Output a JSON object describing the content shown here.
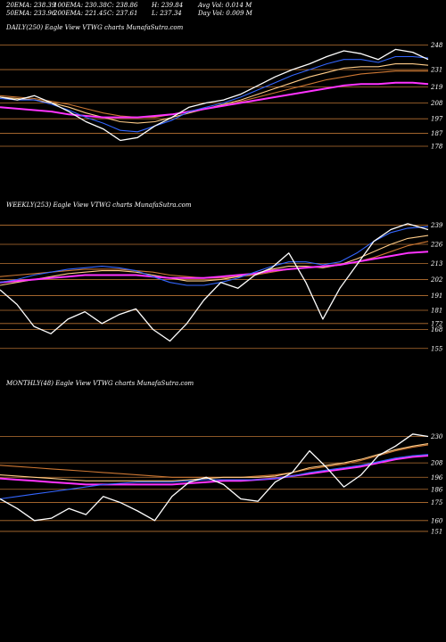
{
  "header": {
    "row1": [
      "20EMA: 238.39",
      "100EMA: 230.38",
      "C: 238.86",
      "H: 239.84",
      "Avg Vol: 0.014  M"
    ],
    "row2": [
      "50EMA: 233.96",
      "200EMA: 221.45",
      "C: 237.61",
      "L: 237.34",
      "Day Vol: 0.009 M"
    ]
  },
  "chart_data": [
    {
      "type": "line",
      "title": "DAILY(250) Eagle  View  VTWG charts MunafaSutra.com",
      "y_ticks": [
        248,
        231,
        219,
        208,
        197,
        187,
        178
      ],
      "ylim": [
        170,
        252
      ],
      "x": [
        0,
        10,
        20,
        30,
        40,
        50,
        60,
        70,
        80,
        90,
        100,
        110,
        120,
        130,
        140,
        150,
        160,
        170,
        180,
        190,
        200,
        210,
        220,
        230,
        240,
        249
      ],
      "series": [
        {
          "color": "#ffffff",
          "values": [
            212,
            210,
            213,
            208,
            202,
            195,
            190,
            182,
            184,
            192,
            198,
            205,
            208,
            210,
            214,
            220,
            226,
            231,
            235,
            240,
            244,
            242,
            238,
            245,
            243,
            238
          ]
        },
        {
          "color": "#3366ff",
          "values": [
            211,
            210,
            210,
            207,
            203,
            198,
            194,
            189,
            188,
            192,
            196,
            202,
            205,
            208,
            212,
            217,
            222,
            227,
            231,
            235,
            238,
            238,
            236,
            240,
            240,
            239
          ]
        },
        {
          "color": "#ff33ff",
          "values": [
            205,
            204,
            203,
            202,
            200,
            199,
            198,
            198,
            198,
            199,
            200,
            202,
            204,
            206,
            208,
            210,
            212,
            214,
            216,
            218,
            220,
            221,
            221,
            222,
            222,
            221
          ]
        },
        {
          "color": "#ffcc88",
          "values": [
            212,
            211,
            210,
            208,
            205,
            201,
            198,
            195,
            194,
            195,
            198,
            201,
            204,
            207,
            210,
            214,
            218,
            222,
            226,
            229,
            232,
            233,
            233,
            235,
            235,
            234
          ]
        },
        {
          "color": "#cc7733",
          "values": [
            213,
            212,
            211,
            209,
            207,
            204,
            201,
            199,
            198,
            198,
            200,
            202,
            204,
            206,
            209,
            212,
            215,
            218,
            221,
            224,
            226,
            228,
            229,
            230,
            230,
            230
          ]
        }
      ]
    },
    {
      "type": "line",
      "title": "WEEKLY(253) Eagle  View  VTWG charts MunafaSutra.com",
      "y_ticks": [
        239,
        226,
        213,
        202,
        191,
        181,
        172,
        168,
        155
      ],
      "ylim": [
        150,
        243
      ],
      "x": [
        0,
        10,
        20,
        30,
        40,
        50,
        60,
        70,
        80,
        90,
        100,
        110,
        120,
        130,
        140,
        150,
        160,
        170,
        180,
        190,
        200,
        210,
        220,
        230,
        240,
        252
      ],
      "series": [
        {
          "color": "#ffffff",
          "values": [
            195,
            185,
            170,
            165,
            175,
            180,
            172,
            178,
            182,
            168,
            160,
            172,
            188,
            200,
            196,
            205,
            210,
            220,
            200,
            175,
            196,
            212,
            228,
            236,
            240,
            236
          ]
        },
        {
          "color": "#3366ff",
          "values": [
            200,
            202,
            205,
            207,
            209,
            210,
            211,
            210,
            208,
            204,
            200,
            198,
            198,
            200,
            203,
            207,
            211,
            214,
            214,
            212,
            214,
            220,
            228,
            234,
            237,
            238
          ]
        },
        {
          "color": "#ff33ff",
          "values": [
            200,
            201,
            202,
            203,
            204,
            205,
            205,
            205,
            205,
            204,
            203,
            203,
            203,
            204,
            205,
            206,
            208,
            209,
            210,
            211,
            212,
            214,
            216,
            218,
            220,
            221
          ]
        },
        {
          "color": "#ffcc88",
          "values": [
            198,
            200,
            202,
            204,
            206,
            207,
            208,
            208,
            207,
            205,
            203,
            201,
            201,
            202,
            204,
            206,
            209,
            211,
            211,
            210,
            212,
            216,
            221,
            226,
            230,
            232
          ]
        },
        {
          "color": "#cc7733",
          "values": [
            204,
            205,
            206,
            207,
            208,
            209,
            209,
            209,
            208,
            207,
            205,
            204,
            203,
            203,
            204,
            205,
            207,
            209,
            210,
            211,
            212,
            214,
            217,
            221,
            225,
            228
          ]
        }
      ]
    },
    {
      "type": "line",
      "title": "MONTHLY(48) Eagle  View  VTWG charts MunafaSutra.com",
      "y_ticks": [
        230,
        208,
        196,
        186,
        175,
        160,
        151
      ],
      "ylim": [
        145,
        240
      ],
      "x": [
        0,
        10,
        20,
        30,
        40,
        50,
        60,
        70,
        80,
        90,
        100,
        110,
        120,
        130,
        140,
        150,
        160,
        170,
        180,
        190,
        200,
        210,
        220,
        230,
        240,
        249
      ],
      "series": [
        {
          "color": "#ffffff",
          "values": [
            178,
            170,
            160,
            162,
            170,
            165,
            180,
            175,
            168,
            160,
            180,
            192,
            196,
            190,
            178,
            176,
            192,
            200,
            218,
            204,
            188,
            198,
            214,
            222,
            232,
            230
          ]
        },
        {
          "color": "#3366ff",
          "values": [
            178,
            180,
            182,
            184,
            186,
            188,
            190,
            191,
            192,
            192,
            192,
            193,
            194,
            194,
            194,
            194,
            195,
            197,
            200,
            202,
            204,
            206,
            209,
            212,
            214,
            215
          ]
        },
        {
          "color": "#ff33ff",
          "values": [
            195,
            194,
            193,
            192,
            191,
            190,
            190,
            190,
            190,
            190,
            190,
            191,
            192,
            193,
            193,
            194,
            195,
            197,
            199,
            201,
            203,
            205,
            208,
            211,
            213,
            214
          ]
        },
        {
          "color": "#ffcc88",
          "values": [
            198,
            197,
            196,
            195,
            194,
            193,
            193,
            193,
            193,
            193,
            193,
            194,
            195,
            196,
            196,
            196,
            197,
            200,
            204,
            206,
            208,
            211,
            215,
            219,
            222,
            224
          ]
        },
        {
          "color": "#cc7733",
          "values": [
            206,
            205,
            204,
            203,
            202,
            201,
            200,
            199,
            198,
            197,
            196,
            196,
            196,
            196,
            196,
            197,
            198,
            200,
            203,
            205,
            207,
            210,
            214,
            218,
            221,
            223
          ]
        }
      ]
    }
  ]
}
